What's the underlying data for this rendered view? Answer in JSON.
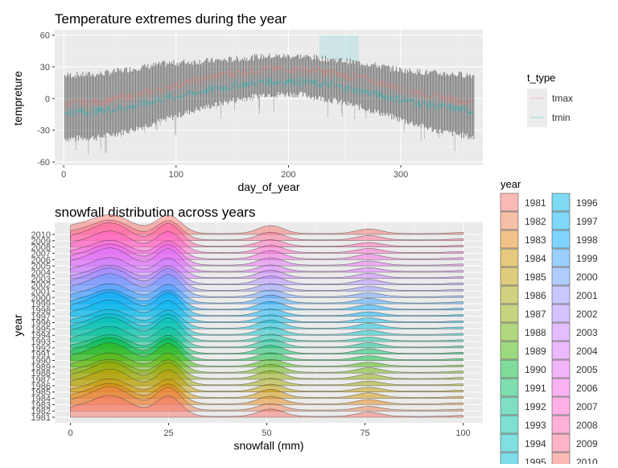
{
  "chart_data": [
    {
      "type": "line",
      "title": "Temperature extremes during the year",
      "xlabel": "day_of_year",
      "ylabel": "tempreture",
      "xlim": [
        -8,
        373
      ],
      "ylim": [
        -63,
        65
      ],
      "xticks": [
        0,
        100,
        200,
        300
      ],
      "yticks": [
        -60,
        -30,
        0,
        30,
        60
      ],
      "legend": {
        "title": "t_type",
        "placement": "right",
        "entries": [
          "tmax",
          "tmin"
        ],
        "colors": [
          "#F8766D",
          "#00BFC4"
        ]
      },
      "series": [
        {
          "name": "tmax",
          "x": [
            1,
            30,
            60,
            90,
            120,
            150,
            180,
            210,
            240,
            270,
            300,
            330,
            365
          ],
          "values": [
            -5,
            -3,
            2,
            10,
            18,
            24,
            28,
            28,
            24,
            18,
            10,
            2,
            -4
          ]
        },
        {
          "name": "tmin",
          "x": [
            1,
            30,
            60,
            90,
            120,
            150,
            180,
            210,
            240,
            270,
            300,
            330,
            365
          ],
          "values": [
            -13,
            -12,
            -8,
            0,
            6,
            12,
            16,
            16,
            12,
            6,
            -1,
            -7,
            -12
          ]
        }
      ],
      "daily_range": {
        "x": [
          1,
          30,
          60,
          90,
          120,
          150,
          180,
          210,
          240,
          270,
          300,
          330,
          365
        ],
        "min": [
          -38,
          -37,
          -30,
          -20,
          -10,
          -2,
          4,
          4,
          -2,
          -10,
          -20,
          -30,
          -37
        ],
        "max": [
          22,
          23,
          28,
          33,
          35,
          37,
          40,
          40,
          37,
          33,
          27,
          24,
          22
        ]
      },
      "highlight_band": {
        "x_from": 228,
        "x_to": 262,
        "y_max": 60
      }
    },
    {
      "type": "area",
      "title": "snowfall distribution across years",
      "xlabel": "snowfall (mm)",
      "ylabel": "year",
      "xlim": [
        -4,
        105
      ],
      "xticks": [
        0,
        25,
        50,
        75,
        100
      ],
      "legend": {
        "title": "year",
        "placement": "right"
      },
      "years": [
        1981,
        1982,
        1983,
        1984,
        1985,
        1986,
        1987,
        1988,
        1989,
        1990,
        1991,
        1992,
        1993,
        1994,
        1995,
        1996,
        1997,
        1998,
        1999,
        2000,
        2001,
        2002,
        2003,
        2004,
        2005,
        2006,
        2007,
        2008,
        2009,
        2010
      ],
      "colors": [
        "#F8766D",
        "#F07F4F",
        "#E68613",
        "#D09400",
        "#C09B00",
        "#A3A500",
        "#8CAB00",
        "#64B200",
        "#3BB600",
        "#00BA38",
        "#00BD5F",
        "#00C08B",
        "#00C1A2",
        "#00BFC4",
        "#00BCD8",
        "#00B8E7",
        "#00B2F3",
        "#00A9FF",
        "#35A2FF",
        "#619CFF",
        "#8F91FF",
        "#AC88FF",
        "#C77CFF",
        "#DB72FB",
        "#E76BF3",
        "#F564E3",
        "#FF61CC",
        "#FF64B0",
        "#FF6C91",
        "#F8766D"
      ],
      "density_peaks_mm": [
        0,
        10,
        25,
        51,
        76,
        100
      ],
      "peak_heights_relative": [
        0.25,
        1.0,
        0.95,
        0.35,
        0.2,
        0.05
      ]
    }
  ]
}
